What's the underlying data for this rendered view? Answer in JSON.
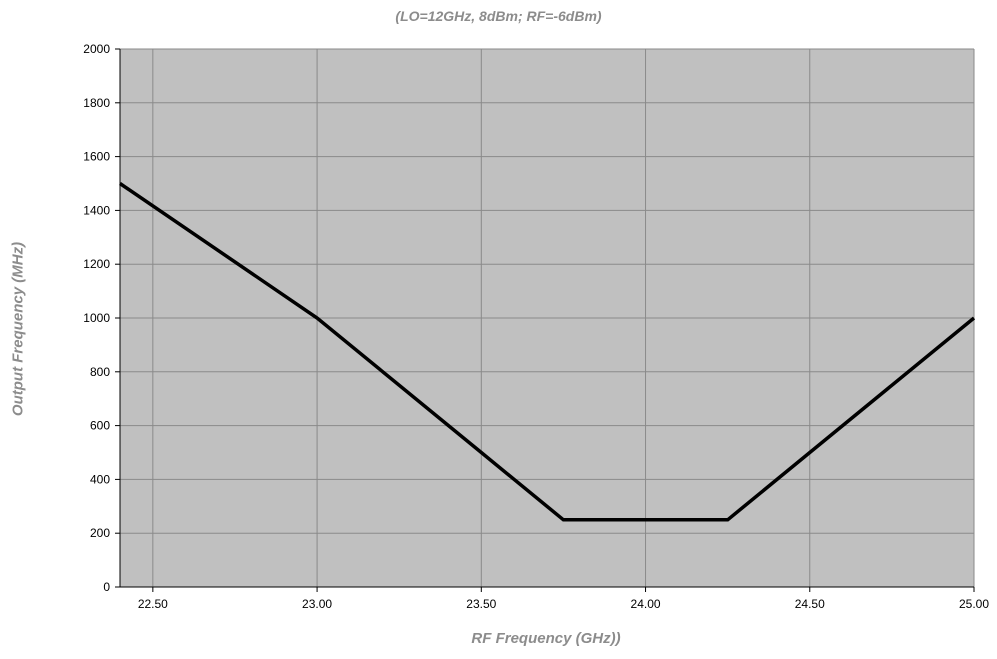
{
  "chart_data": {
    "type": "line",
    "title": "(LO=12GHz, 8dBm; RF=-6dBm)",
    "xlabel": "RF Frequency (GHz))",
    "ylabel": "Output Frequency (MHz)",
    "xlim": [
      22.4,
      25.0
    ],
    "ylim": [
      0,
      2000
    ],
    "x_ticks": [
      "22.50",
      "23.00",
      "23.50",
      "24.00",
      "24.50",
      "25.00"
    ],
    "y_ticks": [
      "0",
      "200",
      "400",
      "600",
      "800",
      "1000",
      "1200",
      "1400",
      "1600",
      "1800",
      "2000"
    ],
    "grid": true,
    "plot_background": "#c0c0c0",
    "line_color": "#000000",
    "series": [
      {
        "x": [
          22.4,
          23.0,
          23.5,
          23.75,
          24.25,
          24.5,
          25.0
        ],
        "y": [
          1500,
          1000,
          500,
          250,
          250,
          500,
          1000
        ]
      }
    ]
  }
}
